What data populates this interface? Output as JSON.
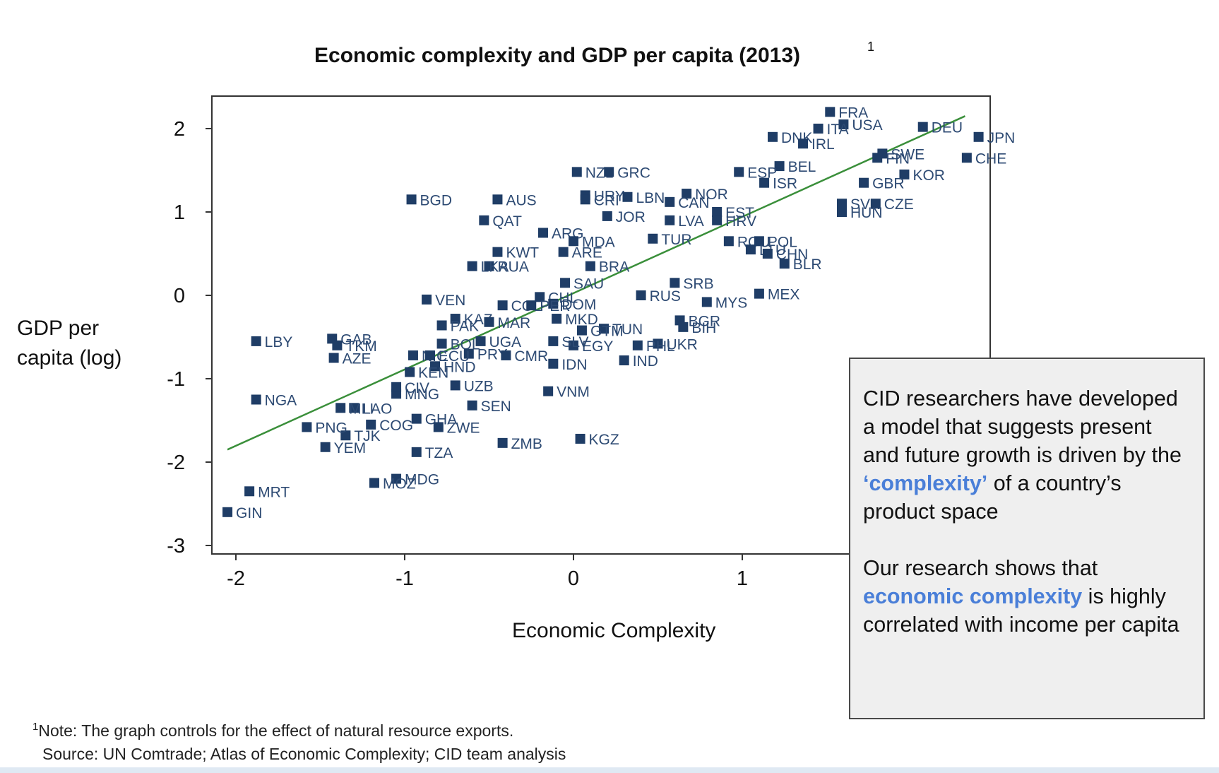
{
  "chart_data": {
    "type": "scatter",
    "title": "Economic complexity and GDP per capita (2013)",
    "title_footnote_marker": "1",
    "xlabel": "Economic Complexity",
    "ylabel": "GDP per capita (log)",
    "ylabel_lines": [
      "GDP per",
      "capita (log)"
    ],
    "xlim": [
      -2.1,
      2.5
    ],
    "ylim": [
      -3.1,
      2.5
    ],
    "xticks": [
      -2,
      -1,
      0,
      1
    ],
    "xtick_labels": [
      "-2",
      "-1",
      "0",
      "1"
    ],
    "yticks": [
      2,
      1,
      0,
      -1,
      -2,
      -3
    ],
    "ytick_labels": [
      "2",
      "1",
      "0",
      "-1",
      "-2",
      "-3"
    ],
    "grid": false,
    "marker_color": "#1f3d66",
    "fit_line_color": "#3a8f3a",
    "fit_line": {
      "x": [
        -2.05,
        2.32
      ],
      "y": [
        -1.85,
        2.15
      ]
    },
    "points": [
      {
        "label": "FRA",
        "x": 1.52,
        "y": 2.2
      },
      {
        "label": "USA",
        "x": 1.6,
        "y": 2.05
      },
      {
        "label": "ITA",
        "x": 1.45,
        "y": 2.0
      },
      {
        "label": "DNK",
        "x": 1.18,
        "y": 1.9
      },
      {
        "label": "IRL",
        "x": 1.36,
        "y": 1.82
      },
      {
        "label": "DEU",
        "x": 2.07,
        "y": 2.02
      },
      {
        "label": "JPN",
        "x": 2.4,
        "y": 1.9
      },
      {
        "label": "CHE",
        "x": 2.33,
        "y": 1.65
      },
      {
        "label": "SWE",
        "x": 1.83,
        "y": 1.7
      },
      {
        "label": "FIN",
        "x": 1.8,
        "y": 1.65
      },
      {
        "label": "KOR",
        "x": 1.96,
        "y": 1.45
      },
      {
        "label": "GBR",
        "x": 1.72,
        "y": 1.35
      },
      {
        "label": "BEL",
        "x": 1.22,
        "y": 1.55
      },
      {
        "label": "ESP",
        "x": 0.98,
        "y": 1.48
      },
      {
        "label": "ISR",
        "x": 1.13,
        "y": 1.35
      },
      {
        "label": "SVK",
        "x": 1.59,
        "y": 1.1
      },
      {
        "label": "CZE",
        "x": 1.79,
        "y": 1.1
      },
      {
        "label": "HUN",
        "x": 1.59,
        "y": 1.0
      },
      {
        "label": "NZL",
        "x": 0.02,
        "y": 1.48
      },
      {
        "label": "GRC",
        "x": 0.21,
        "y": 1.48
      },
      {
        "label": "URY",
        "x": 0.07,
        "y": 1.2
      },
      {
        "label": "CRI",
        "x": 0.07,
        "y": 1.15
      },
      {
        "label": "LBN",
        "x": 0.32,
        "y": 1.18
      },
      {
        "label": "NOR",
        "x": 0.67,
        "y": 1.22
      },
      {
        "label": "CAN",
        "x": 0.57,
        "y": 1.12
      },
      {
        "label": "EST",
        "x": 0.85,
        "y": 1.0
      },
      {
        "label": "HRV",
        "x": 0.85,
        "y": 0.9
      },
      {
        "label": "LVA",
        "x": 0.57,
        "y": 0.9
      },
      {
        "label": "BGD",
        "x": -0.96,
        "y": 1.15
      },
      {
        "label": "AUS",
        "x": -0.45,
        "y": 1.15
      },
      {
        "label": "QAT",
        "x": -0.53,
        "y": 0.9
      },
      {
        "label": "JOR",
        "x": 0.2,
        "y": 0.95
      },
      {
        "label": "ARG",
        "x": -0.18,
        "y": 0.75
      },
      {
        "label": "MDA",
        "x": 0.0,
        "y": 0.65
      },
      {
        "label": "TUR",
        "x": 0.47,
        "y": 0.68
      },
      {
        "label": "ROU",
        "x": 0.92,
        "y": 0.65
      },
      {
        "label": "POL",
        "x": 1.1,
        "y": 0.65
      },
      {
        "label": "LTU",
        "x": 1.05,
        "y": 0.55
      },
      {
        "label": "CHN",
        "x": 1.15,
        "y": 0.5
      },
      {
        "label": "BLR",
        "x": 1.25,
        "y": 0.38
      },
      {
        "label": "KWT",
        "x": -0.45,
        "y": 0.52
      },
      {
        "label": "ARE",
        "x": -0.06,
        "y": 0.52
      },
      {
        "label": "RUA",
        "x": -0.5,
        "y": 0.35
      },
      {
        "label": "LKA",
        "x": -0.6,
        "y": 0.35
      },
      {
        "label": "BRA",
        "x": 0.1,
        "y": 0.35
      },
      {
        "label": "SAU",
        "x": -0.05,
        "y": 0.15
      },
      {
        "label": "SRB",
        "x": 0.6,
        "y": 0.15
      },
      {
        "label": "RUS",
        "x": 0.4,
        "y": 0.0
      },
      {
        "label": "MYS",
        "x": 0.79,
        "y": -0.08
      },
      {
        "label": "MEX",
        "x": 1.1,
        "y": 0.02
      },
      {
        "label": "VEN",
        "x": -0.87,
        "y": -0.05
      },
      {
        "label": "CHL",
        "x": -0.2,
        "y": -0.02
      },
      {
        "label": "DOM",
        "x": -0.12,
        "y": -0.1
      },
      {
        "label": "COL",
        "x": -0.42,
        "y": -0.12
      },
      {
        "label": "PER",
        "x": -0.25,
        "y": -0.12
      },
      {
        "label": "KAZ",
        "x": -0.7,
        "y": -0.28
      },
      {
        "label": "PAK",
        "x": -0.78,
        "y": -0.36
      },
      {
        "label": "MAR",
        "x": -0.5,
        "y": -0.32
      },
      {
        "label": "MKD",
        "x": -0.1,
        "y": -0.28
      },
      {
        "label": "BGR",
        "x": 0.63,
        "y": -0.3
      },
      {
        "label": "BIH",
        "x": 0.65,
        "y": -0.38
      },
      {
        "label": "TUN",
        "x": 0.18,
        "y": -0.4
      },
      {
        "label": "GTM",
        "x": 0.05,
        "y": -0.42
      },
      {
        "label": "UKR",
        "x": 0.5,
        "y": -0.58
      },
      {
        "label": "PHL",
        "x": 0.38,
        "y": -0.6
      },
      {
        "label": "IND",
        "x": 0.3,
        "y": -0.78
      },
      {
        "label": "IDN",
        "x": -0.12,
        "y": -0.82
      },
      {
        "label": "UGA",
        "x": -0.55,
        "y": -0.55
      },
      {
        "label": "EGY",
        "x": 0.0,
        "y": -0.6
      },
      {
        "label": "SLV",
        "x": -0.12,
        "y": -0.55
      },
      {
        "label": "VNM",
        "x": -0.15,
        "y": -1.15
      },
      {
        "label": "BOL",
        "x": -0.78,
        "y": -0.58
      },
      {
        "label": "HND",
        "x": -0.82,
        "y": -0.85
      },
      {
        "label": "NIC",
        "x": -0.95,
        "y": -0.72
      },
      {
        "label": "PRY",
        "x": -0.62,
        "y": -0.7
      },
      {
        "label": "YEM",
        "x": -1.47,
        "y": -1.82
      },
      {
        "label": "ECU",
        "x": -0.85,
        "y": -0.72
      },
      {
        "label": "CMR",
        "x": -0.4,
        "y": -0.72
      },
      {
        "label": "GAB",
        "x": -1.43,
        "y": -0.52
      },
      {
        "label": "TKM",
        "x": -1.4,
        "y": -0.6
      },
      {
        "label": "AZE",
        "x": -1.42,
        "y": -0.75
      },
      {
        "label": "LBY",
        "x": -1.88,
        "y": -0.55
      },
      {
        "label": "NGA",
        "x": -1.88,
        "y": -1.25
      },
      {
        "label": "KEN",
        "x": -0.97,
        "y": -0.92
      },
      {
        "label": "UZB",
        "x": -0.7,
        "y": -1.08
      },
      {
        "label": "SEN",
        "x": -0.6,
        "y": -1.32
      },
      {
        "label": "MNG",
        "x": -1.05,
        "y": -1.18
      },
      {
        "label": "CIV",
        "x": -1.05,
        "y": -1.1
      },
      {
        "label": "GHA",
        "x": -0.93,
        "y": -1.48
      },
      {
        "label": "ZWE",
        "x": -0.8,
        "y": -1.58
      },
      {
        "label": "TJK",
        "x": -1.35,
        "y": -1.68
      },
      {
        "label": "PNG",
        "x": -1.58,
        "y": -1.58
      },
      {
        "label": "COG",
        "x": -1.2,
        "y": -1.55
      },
      {
        "label": "LAO",
        "x": -1.3,
        "y": -1.35
      },
      {
        "label": "MLI",
        "x": -1.38,
        "y": -1.35
      },
      {
        "label": "TZA",
        "x": -0.93,
        "y": -1.88
      },
      {
        "label": "ZMB",
        "x": -0.42,
        "y": -1.77
      },
      {
        "label": "KGZ",
        "x": 0.04,
        "y": -1.72
      },
      {
        "label": "MDG",
        "x": -1.05,
        "y": -2.2
      },
      {
        "label": "MOZ",
        "x": -1.18,
        "y": -2.25
      },
      {
        "label": "MRT",
        "x": -1.92,
        "y": -2.35
      },
      {
        "label": "GIN",
        "x": -2.05,
        "y": -2.6
      }
    ]
  },
  "callout": {
    "para1_before": "CID researchers have developed a model that suggests present and future growth is driven by the ",
    "para1_highlight": "‘complexity’",
    "para1_after": " of a country’s product space",
    "para2_before": "Our research shows that ",
    "para2_highlight": "economic complexity",
    "para2_after": " is highly correlated with income per capita"
  },
  "footnote": {
    "marker": "1",
    "note": "Note: The graph controls for the effect of natural resource exports.",
    "source": "Source: UN Comtrade; Atlas of Economic Complexity; CID team analysis"
  }
}
